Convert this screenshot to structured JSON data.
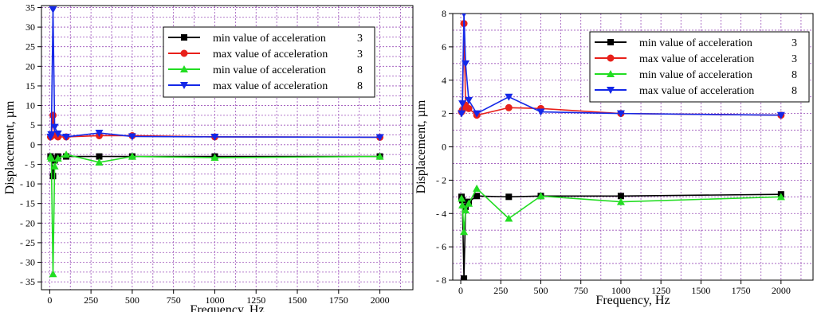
{
  "chart_data": [
    {
      "type": "line",
      "xlabel": "Frequency, Hz",
      "ylabel": "Displacement, µm",
      "xlim": [
        -50,
        2200
      ],
      "ylim": [
        -37,
        35.5
      ],
      "xticks": [
        0,
        250,
        500,
        750,
        1000,
        1250,
        1500,
        1750,
        2000
      ],
      "yticks": [
        35,
        30,
        25,
        20,
        15,
        10,
        5,
        0,
        -5,
        -10,
        -15,
        -20,
        -25,
        -30,
        -35
      ],
      "grid": true,
      "legend_position": "top-right",
      "series": [
        {
          "name": "min value of acceleration",
          "legend_value": "3",
          "color": "#000000",
          "marker": "square",
          "points": [
            [
              5,
              -3
            ],
            [
              10,
              -3.5
            ],
            [
              20,
              -8
            ],
            [
              30,
              -4
            ],
            [
              50,
              -3
            ],
            [
              100,
              -3
            ],
            [
              300,
              -3
            ],
            [
              500,
              -3
            ],
            [
              1000,
              -3
            ],
            [
              2000,
              -3
            ]
          ]
        },
        {
          "name": "max value of acceleration",
          "legend_value": "3",
          "color": "#e8201a",
          "marker": "circle",
          "points": [
            [
              5,
              2
            ],
            [
              10,
              2.2
            ],
            [
              20,
              7.5
            ],
            [
              30,
              2.5
            ],
            [
              50,
              2
            ],
            [
              100,
              2
            ],
            [
              300,
              2.3
            ],
            [
              500,
              2.3
            ],
            [
              1000,
              2
            ],
            [
              2000,
              1.9
            ]
          ]
        },
        {
          "name": "min value of acceleration",
          "legend_value": "8",
          "color": "#22dd22",
          "marker": "triangle-up",
          "points": [
            [
              5,
              -3
            ],
            [
              10,
              -3.5
            ],
            [
              20,
              -33
            ],
            [
              30,
              -5.5
            ],
            [
              50,
              -3.5
            ],
            [
              100,
              -2.5
            ],
            [
              300,
              -4.5
            ],
            [
              500,
              -3
            ],
            [
              1000,
              -3.3
            ],
            [
              2000,
              -3
            ]
          ]
        },
        {
          "name": "max value of acceleration",
          "legend_value": "8",
          "color": "#1428e8",
          "marker": "triangle-down",
          "points": [
            [
              5,
              2
            ],
            [
              10,
              2.6
            ],
            [
              20,
              34.5
            ],
            [
              30,
              4.5
            ],
            [
              50,
              2.8
            ],
            [
              100,
              2
            ],
            [
              300,
              3
            ],
            [
              500,
              2.1
            ],
            [
              1000,
              2
            ],
            [
              2000,
              1.9
            ]
          ]
        }
      ]
    },
    {
      "type": "line",
      "xlabel": "Frequency, Hz",
      "ylabel": "Displacement, µm",
      "xlim": [
        -50,
        2200
      ],
      "ylim": [
        -8,
        8
      ],
      "xticks": [
        0,
        250,
        500,
        750,
        1000,
        1250,
        1500,
        1750,
        2000
      ],
      "yticks": [
        8,
        6,
        4,
        2,
        0,
        -2,
        -4,
        -6,
        -8
      ],
      "grid": true,
      "legend_position": "top-right",
      "series": [
        {
          "name": "min value of acceleration",
          "legend_value": "3",
          "color": "#000000",
          "marker": "square",
          "points": [
            [
              5,
              -3
            ],
            [
              10,
              -3.2
            ],
            [
              20,
              -7.9
            ],
            [
              30,
              -3.6
            ],
            [
              50,
              -3.3
            ],
            [
              100,
              -2.95
            ],
            [
              300,
              -3
            ],
            [
              500,
              -2.95
            ],
            [
              1000,
              -2.95
            ],
            [
              2000,
              -2.85
            ]
          ]
        },
        {
          "name": "max value of acceleration",
          "legend_value": "3",
          "color": "#e8201a",
          "marker": "circle",
          "points": [
            [
              5,
              2.1
            ],
            [
              10,
              2.2
            ],
            [
              20,
              7.4
            ],
            [
              30,
              2.5
            ],
            [
              50,
              2.3
            ],
            [
              100,
              1.9
            ],
            [
              300,
              2.35
            ],
            [
              500,
              2.3
            ],
            [
              1000,
              2
            ],
            [
              2000,
              1.9
            ]
          ]
        },
        {
          "name": "min value of acceleration",
          "legend_value": "8",
          "color": "#22dd22",
          "marker": "triangle-up",
          "points": [
            [
              5,
              -3.1
            ],
            [
              10,
              -3.5
            ],
            [
              20,
              -5.1
            ],
            [
              30,
              -3.8
            ],
            [
              50,
              -3.4
            ],
            [
              100,
              -2.5
            ],
            [
              300,
              -4.3
            ],
            [
              500,
              -2.95
            ],
            [
              1000,
              -3.3
            ],
            [
              2000,
              -3
            ]
          ]
        },
        {
          "name": "max value of acceleration",
          "legend_value": "8",
          "color": "#1428e8",
          "marker": "triangle-down",
          "points": [
            [
              5,
              2
            ],
            [
              10,
              2.6
            ],
            [
              20,
              8
            ],
            [
              30,
              5
            ],
            [
              50,
              2.8
            ],
            [
              100,
              2
            ],
            [
              300,
              3
            ],
            [
              500,
              2.1
            ],
            [
              1000,
              2
            ],
            [
              2000,
              1.9
            ]
          ]
        }
      ]
    }
  ]
}
